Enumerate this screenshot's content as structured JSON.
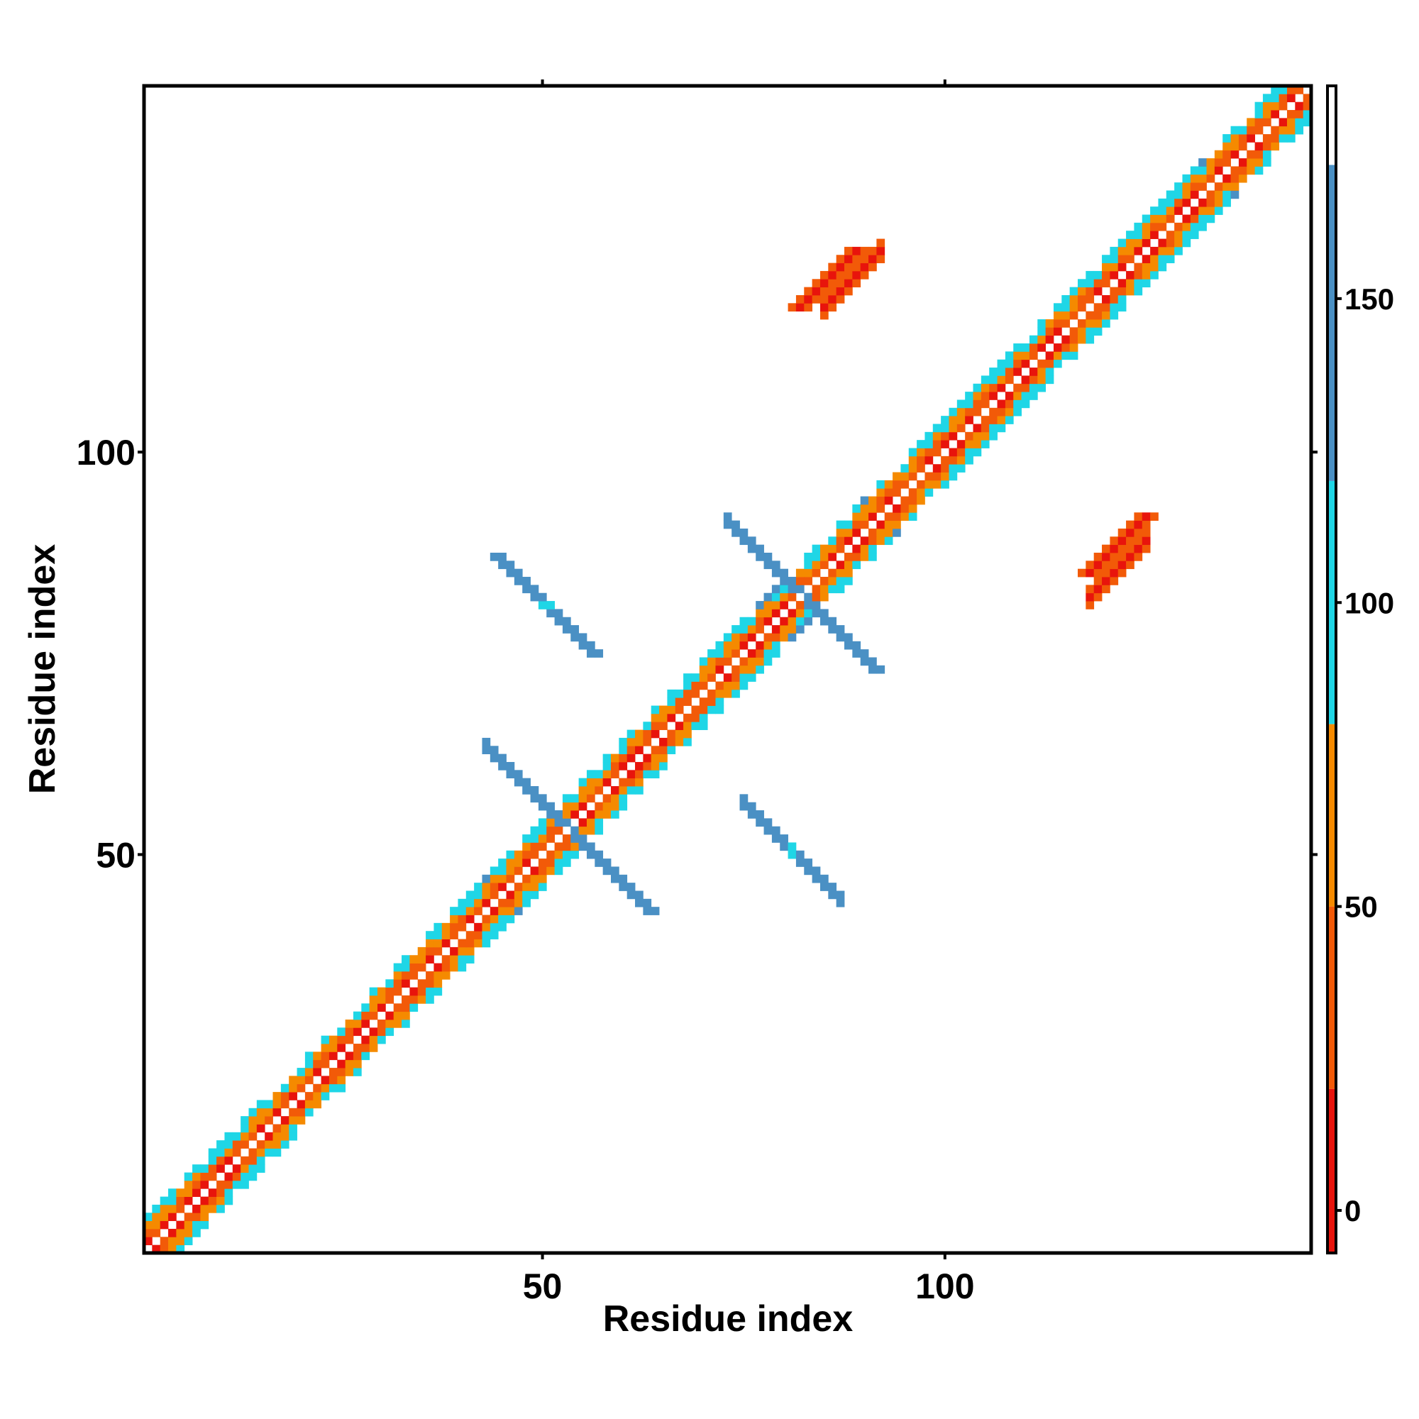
{
  "chart_data": {
    "type": "heatmap",
    "title": "",
    "xlabel": "Residue index",
    "ylabel": "Residue index",
    "xlim": [
      1,
      145
    ],
    "ylim": [
      1,
      145
    ],
    "x_ticks": [
      {
        "value": 50,
        "label": "50"
      },
      {
        "value": 100,
        "label": "100"
      }
    ],
    "y_ticks": [
      {
        "value": 50,
        "label": "50"
      },
      {
        "value": 100,
        "label": "100"
      }
    ],
    "colorbar": {
      "range": [
        -7,
        185
      ],
      "ticks": [
        {
          "value": 0,
          "label": "0"
        },
        {
          "value": 50,
          "label": "50"
        },
        {
          "value": 100,
          "label": "100"
        },
        {
          "value": 150,
          "label": "150"
        }
      ],
      "bands": [
        {
          "from": -7,
          "to": 20,
          "color": "#e8140c"
        },
        {
          "from": 20,
          "to": 50,
          "color": "#f25a08"
        },
        {
          "from": 50,
          "to": 80,
          "color": "#f58a00"
        },
        {
          "from": 80,
          "to": 120,
          "color": "#1fd6e6"
        },
        {
          "from": 120,
          "to": 172,
          "color": "#4a90c4"
        },
        {
          "from": 172,
          "to": 185,
          "color": "#ffffff"
        }
      ]
    },
    "grid": false,
    "features": [
      {
        "kind": "diagonal",
        "from": 1,
        "to": 145
      },
      {
        "kind": "antiparallel",
        "center": [
          53,
          53
        ],
        "half_length": 10,
        "value": 150
      },
      {
        "kind": "antiparallel",
        "center": [
          82,
          82
        ],
        "half_length": 9,
        "value": 150
      },
      {
        "kind": "antiparallel",
        "center": [
          81,
          50
        ],
        "half_length": 6,
        "value": 150
      },
      {
        "kind": "parallel",
        "start": [
          85,
          118
        ],
        "length": 8,
        "value": 15
      },
      {
        "kind": "parallel",
        "start": [
          118,
          82
        ],
        "length": 8,
        "value": 15
      }
    ]
  }
}
